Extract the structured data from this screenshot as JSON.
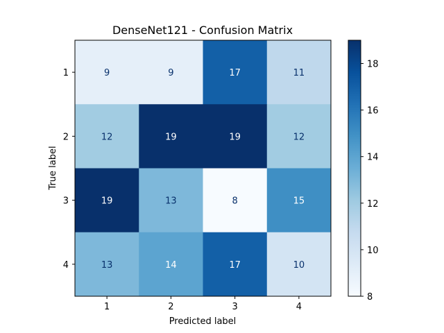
{
  "chart_data": {
    "type": "heatmap",
    "title": "DenseNet121 - Confusion Matrix",
    "xlabel": "Predicted label",
    "ylabel": "True label",
    "x_categories": [
      "1",
      "2",
      "3",
      "4"
    ],
    "y_categories": [
      "1",
      "2",
      "3",
      "4"
    ],
    "matrix": [
      [
        9,
        9,
        17,
        11
      ],
      [
        12,
        19,
        19,
        12
      ],
      [
        19,
        13,
        8,
        15
      ],
      [
        13,
        14,
        17,
        10
      ]
    ],
    "colormap": "Blues",
    "colorbar": {
      "min": 8,
      "max": 19,
      "ticks": [
        8,
        10,
        12,
        14,
        16,
        18
      ]
    },
    "grid": false
  }
}
